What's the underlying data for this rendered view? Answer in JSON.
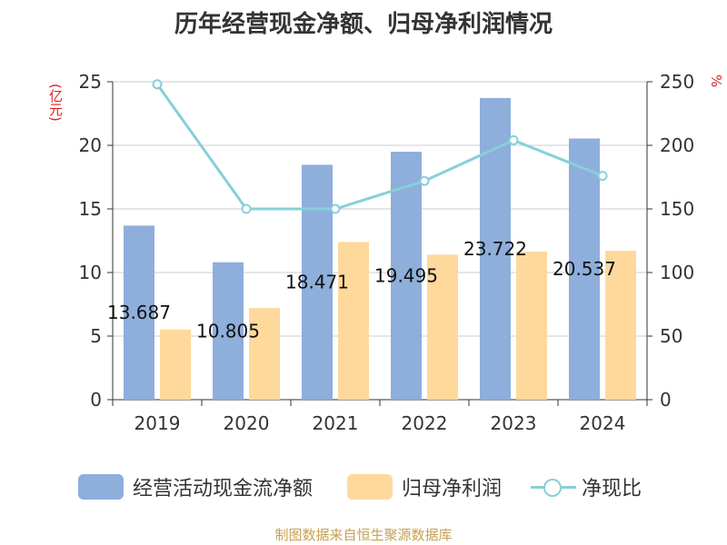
{
  "chart_data": {
    "type": "bar",
    "title": "历年经营现金净额、归母净利润情况",
    "left_axis_unit": "(亿元)",
    "right_axis_unit": "%",
    "categories": [
      "2019",
      "2020",
      "2021",
      "2022",
      "2023",
      "2024"
    ],
    "ylim": [
      0,
      25
    ],
    "y_ticks": [
      "0",
      "5",
      "10",
      "15",
      "20",
      "25"
    ],
    "y2lim": [
      0,
      250
    ],
    "y2_ticks": [
      "0",
      "50",
      "100",
      "150",
      "200",
      "250"
    ],
    "grid": true,
    "legend_position": "bottom",
    "series": [
      {
        "name": "经营活动现金流净额",
        "type": "bar",
        "axis": "left",
        "color": "#8eaedb",
        "values": [
          13.687,
          10.805,
          18.471,
          19.495,
          23.722,
          20.537
        ],
        "labels": [
          "13.687",
          "10.805",
          "18.471",
          "19.495",
          "23.722",
          "20.537"
        ]
      },
      {
        "name": "归母净利润",
        "type": "bar",
        "axis": "left",
        "color": "#fed99b",
        "values": [
          5.52,
          7.2,
          12.4,
          11.4,
          11.65,
          11.7
        ]
      },
      {
        "name": "净现比",
        "type": "line",
        "axis": "right",
        "color": "#86d0d8",
        "values": [
          248,
          150,
          150,
          172,
          204,
          176
        ]
      }
    ]
  },
  "source_note": "制图数据来自恒生聚源数据库"
}
